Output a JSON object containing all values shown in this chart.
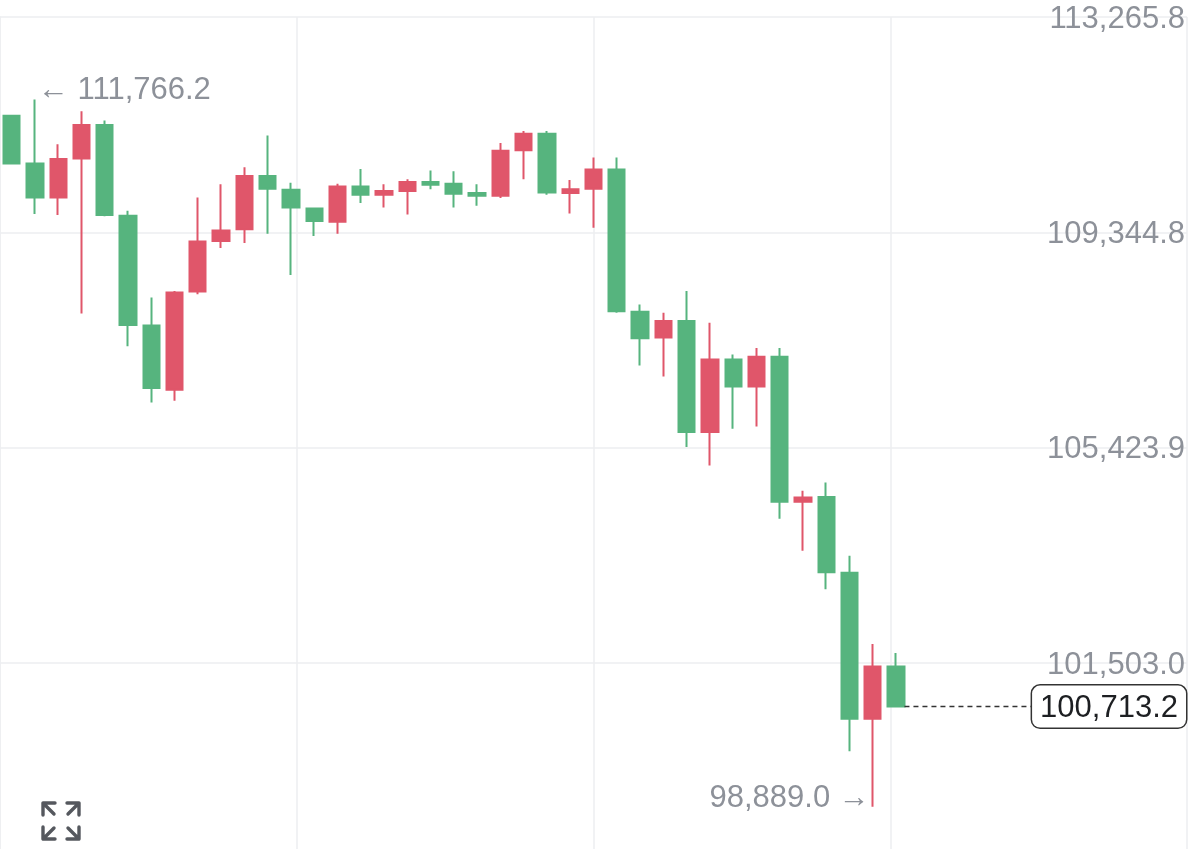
{
  "chart_data": {
    "type": "candlestick",
    "categories": [
      null,
      null,
      null,
      null,
      null,
      null,
      null,
      null,
      null,
      null,
      null,
      null,
      null,
      null,
      null,
      null,
      null,
      null,
      null,
      null,
      null,
      null,
      null,
      null,
      null,
      null,
      null,
      null,
      null,
      null,
      null,
      null,
      null,
      null,
      null,
      null,
      null,
      null,
      null,
      null,
      null,
      null,
      null,
      null,
      null,
      null,
      null,
      null,
      null,
      null,
      null
    ],
    "ohlc": [
      [
        111470,
        111470,
        110600,
        110600
      ],
      [
        110600,
        111766.2,
        109680,
        109980
      ],
      [
        109980,
        110950,
        109660,
        110680
      ],
      [
        110690,
        111550,
        107870,
        111300
      ],
      [
        111300,
        111380,
        109640,
        109660
      ],
      [
        109650,
        109740,
        107270,
        107660
      ],
      [
        107650,
        108160,
        106250,
        106510
      ],
      [
        106480,
        108280,
        106280,
        108250
      ],
      [
        108270,
        109980,
        108220,
        109180
      ],
      [
        109190,
        110220,
        109060,
        109380
      ],
      [
        109400,
        110530,
        109150,
        110370
      ],
      [
        110370,
        111110,
        109320,
        110140
      ],
      [
        110120,
        110250,
        108570,
        109800
      ],
      [
        109780,
        109780,
        109280,
        109550
      ],
      [
        109540,
        110230,
        109320,
        110180
      ],
      [
        110180,
        110500,
        109880,
        110030
      ],
      [
        110030,
        110220,
        109800,
        110100
      ],
      [
        110100,
        110310,
        109670,
        110260
      ],
      [
        110260,
        110470,
        110130,
        110210
      ],
      [
        110230,
        110460,
        109800,
        110050
      ],
      [
        110060,
        110220,
        109830,
        110010
      ],
      [
        110010,
        110970,
        109970,
        110830
      ],
      [
        110840,
        111190,
        110310,
        111140
      ],
      [
        111140,
        111190,
        110030,
        110070
      ],
      [
        110060,
        110300,
        109690,
        110130
      ],
      [
        110140,
        110710,
        109430,
        110490
      ],
      [
        110490,
        110710,
        107880,
        107910
      ],
      [
        107900,
        108030,
        106920,
        107420
      ],
      [
        107430,
        107880,
        106720,
        107730
      ],
      [
        107730,
        108280,
        105440,
        105710
      ],
      [
        105710,
        107700,
        105100,
        107030
      ],
      [
        107030,
        107120,
        105770,
        106540
      ],
      [
        106540,
        107240,
        105810,
        107080
      ],
      [
        107080,
        107240,
        104130,
        104440
      ],
      [
        104440,
        104640,
        103550,
        104520
      ],
      [
        104530,
        104790,
        102850,
        103160
      ],
      [
        103150,
        103460,
        99900,
        100490
      ],
      [
        100490,
        101850,
        98889.0,
        101440
      ],
      [
        101440,
        101690,
        100713.2,
        100713.2
      ],
      null,
      null,
      null,
      null,
      null,
      null,
      null,
      null,
      null,
      null,
      null,
      null
    ],
    "colors": [
      "#56b47e",
      "#56b47e",
      "#e0566a",
      "#e0566a",
      "#56b47e",
      "#56b47e",
      "#56b47e",
      "#e0566a",
      "#e0566a",
      "#e0566a",
      "#e0566a",
      "#56b47e",
      "#56b47e",
      "#56b47e",
      "#e0566a",
      "#56b47e",
      "#e0566a",
      "#e0566a",
      "#56b47e",
      "#56b47e",
      "#56b47e",
      "#e0566a",
      "#e0566a",
      "#56b47e",
      "#e0566a",
      "#e0566a",
      "#56b47e",
      "#56b47e",
      "#e0566a",
      "#56b47e",
      "#e0566a",
      "#56b47e",
      "#e0566a",
      "#56b47e",
      "#e0566a",
      "#56b47e",
      "#56b47e",
      "#e0566a",
      "#56b47e",
      null,
      null,
      null,
      null,
      null,
      null,
      null,
      null,
      null,
      null,
      null,
      null
    ],
    "ylim": [
      98120,
      113265.8
    ],
    "yticks": [
      {
        "value": 101503.0,
        "label": "101,503.0"
      },
      {
        "value": 105423.9,
        "label": "105,423.9"
      },
      {
        "value": 109344.8,
        "label": "109,344.8"
      },
      {
        "value": 113265.8,
        "label": "113,265.8"
      }
    ],
    "grid": true,
    "tick_labels": "y",
    "annotations": [
      "← 111,766.2",
      "98,889.0 →"
    ],
    "ref_lines": [
      {
        "axis": "y",
        "value": 100713.2,
        "label": "100,713.2",
        "line_style": "dashed",
        "color": "#333333"
      }
    ]
  }
}
